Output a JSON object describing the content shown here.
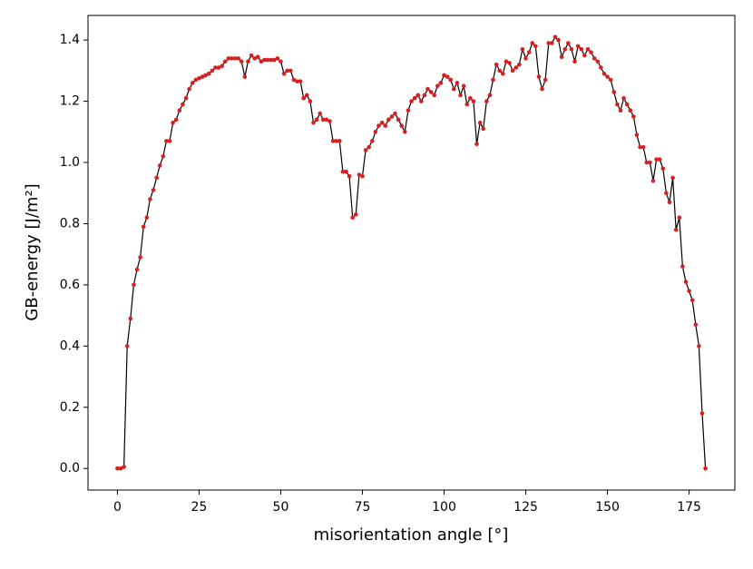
{
  "chart_data": {
    "type": "line",
    "xlabel": "misorientation angle [°]",
    "ylabel": "GB-energy [J/m²]",
    "x": [
      0,
      1,
      2,
      3,
      4,
      5,
      6,
      7,
      8,
      9,
      10,
      11,
      12,
      13,
      14,
      15,
      16,
      17,
      18,
      19,
      20,
      21,
      22,
      23,
      24,
      25,
      26,
      27,
      28,
      29,
      30,
      31,
      32,
      33,
      34,
      35,
      36,
      37,
      38,
      39,
      40,
      41,
      42,
      43,
      44,
      45,
      46,
      47,
      48,
      49,
      50,
      51,
      52,
      53,
      54,
      55,
      56,
      57,
      58,
      59,
      60,
      61,
      62,
      63,
      64,
      65,
      66,
      67,
      68,
      69,
      70,
      71,
      72,
      73,
      74,
      75,
      76,
      77,
      78,
      79,
      80,
      81,
      82,
      83,
      84,
      85,
      86,
      87,
      88,
      89,
      90,
      91,
      92,
      93,
      94,
      95,
      96,
      97,
      98,
      99,
      100,
      101,
      102,
      103,
      104,
      105,
      106,
      107,
      108,
      109,
      110,
      111,
      112,
      113,
      114,
      115,
      116,
      117,
      118,
      119,
      120,
      121,
      122,
      123,
      124,
      125,
      126,
      127,
      128,
      129,
      130,
      131,
      132,
      133,
      134,
      135,
      136,
      137,
      138,
      139,
      140,
      141,
      142,
      143,
      144,
      145,
      146,
      147,
      148,
      149,
      150,
      151,
      152,
      153,
      154,
      155,
      156,
      157,
      158,
      159,
      160,
      161,
      162,
      163,
      164,
      165,
      166,
      167,
      168,
      169,
      170,
      171,
      172,
      173,
      174,
      175,
      176,
      177,
      178,
      179,
      180
    ],
    "values": [
      0,
      0,
      0.005,
      0.4,
      0.49,
      0.6,
      0.65,
      0.69,
      0.79,
      0.82,
      0.88,
      0.91,
      0.95,
      0.99,
      1.02,
      1.07,
      1.07,
      1.13,
      1.14,
      1.17,
      1.19,
      1.21,
      1.24,
      1.26,
      1.27,
      1.275,
      1.28,
      1.285,
      1.29,
      1.3,
      1.31,
      1.31,
      1.315,
      1.33,
      1.34,
      1.34,
      1.34,
      1.34,
      1.33,
      1.28,
      1.33,
      1.35,
      1.34,
      1.345,
      1.33,
      1.335,
      1.335,
      1.335,
      1.335,
      1.34,
      1.33,
      1.29,
      1.3,
      1.3,
      1.27,
      1.265,
      1.265,
      1.21,
      1.22,
      1.2,
      1.13,
      1.14,
      1.16,
      1.14,
      1.14,
      1.135,
      1.07,
      1.07,
      1.07,
      0.97,
      0.97,
      0.955,
      0.82,
      0.83,
      0.96,
      0.955,
      1.04,
      1.05,
      1.07,
      1.1,
      1.12,
      1.13,
      1.12,
      1.14,
      1.15,
      1.16,
      1.14,
      1.12,
      1.1,
      1.17,
      1.2,
      1.21,
      1.22,
      1.2,
      1.22,
      1.24,
      1.23,
      1.22,
      1.25,
      1.26,
      1.285,
      1.28,
      1.27,
      1.24,
      1.26,
      1.22,
      1.25,
      1.19,
      1.21,
      1.2,
      1.06,
      1.13,
      1.11,
      1.2,
      1.22,
      1.27,
      1.32,
      1.3,
      1.29,
      1.33,
      1.325,
      1.3,
      1.31,
      1.32,
      1.37,
      1.34,
      1.36,
      1.39,
      1.38,
      1.28,
      1.24,
      1.27,
      1.39,
      1.39,
      1.41,
      1.4,
      1.345,
      1.37,
      1.39,
      1.37,
      1.33,
      1.38,
      1.37,
      1.35,
      1.37,
      1.36,
      1.34,
      1.33,
      1.31,
      1.29,
      1.28,
      1.27,
      1.23,
      1.19,
      1.17,
      1.21,
      1.19,
      1.17,
      1.15,
      1.09,
      1.05,
      1.05,
      1.0,
      1.0,
      0.94,
      1.01,
      1.01,
      0.98,
      0.9,
      0.87,
      0.95,
      0.78,
      0.82,
      0.66,
      0.61,
      0.58,
      0.55,
      0.47,
      0.4,
      0.18,
      0
    ],
    "color": "#000000",
    "marker_color": "#d62020",
    "xlim": [
      -9,
      189
    ],
    "xticks": [
      0,
      25,
      50,
      75,
      100,
      125,
      150,
      175
    ],
    "ylim": [
      -0.0705,
      1.4805
    ],
    "yticks": [
      {
        "value": 0,
        "label": "0.0"
      },
      0.2,
      0.4,
      0.6,
      0.8,
      {
        "value": 1,
        "label": "1.0"
      },
      1.2,
      1.4
    ],
    "grid": false
  }
}
